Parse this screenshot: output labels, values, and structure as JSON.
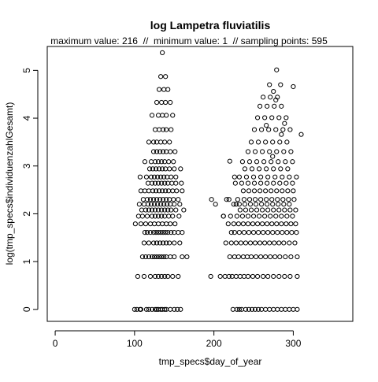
{
  "chart_data": {
    "type": "scatter",
    "title": "log Lampetra fluviatilis",
    "subtitle": "maximum value: 216  //  minimum value: 1  // sampling points: 595",
    "xlabel": "tmp_specs$day_of_year",
    "ylabel": "log(tmp_specs$individuenzahlGesamt)",
    "xlim": [
      -10,
      375
    ],
    "ylim": [
      -0.25,
      5.5
    ],
    "x_ticks": [
      0,
      100,
      200,
      300
    ],
    "y_ticks": [
      0,
      1,
      2,
      3,
      4,
      5
    ],
    "grid": false,
    "marker": "open-circle",
    "point_color": "#000000",
    "series": [
      {
        "x": [
          100,
          103,
          107,
          108,
          115,
          118,
          122,
          126,
          128,
          130,
          133,
          135,
          138,
          140,
          145,
          150,
          154,
          158,
          104,
          112,
          120,
          126,
          130,
          134,
          138,
          142,
          148,
          155,
          110,
          114,
          118,
          122,
          125,
          128,
          131,
          134,
          137,
          140,
          145,
          150,
          160,
          166,
          112,
          118,
          124,
          128,
          132,
          136,
          140,
          144,
          150,
          157,
          113,
          116,
          120,
          124,
          127,
          130,
          133,
          136,
          139,
          142,
          146,
          150,
          155,
          101,
          108,
          114,
          120,
          125,
          130,
          135,
          140,
          145,
          151,
          160,
          105,
          110,
          116,
          122,
          126,
          130,
          134,
          138,
          143,
          148,
          156,
          109,
          114,
          118,
          122,
          126,
          130,
          134,
          138,
          142,
          146,
          152,
          162,
          106,
          112,
          117,
          121,
          125,
          129,
          133,
          137,
          141,
          145,
          150,
          157,
          111,
          116,
          120,
          124,
          128,
          132,
          136,
          140,
          144,
          149,
          155,
          108,
          113,
          118,
          123,
          127,
          131,
          135,
          139,
          143,
          148,
          153,
          160,
          117,
          122,
          126,
          130,
          134,
          138,
          142,
          147,
          152,
          159,
          107,
          115,
          121,
          125,
          129,
          133,
          137,
          141,
          146,
          152,
          119,
          123,
          127,
          131,
          135,
          139,
          144,
          150,
          158,
          113,
          121,
          126,
          130,
          134,
          138,
          143,
          149,
          124,
          128,
          132,
          136,
          140,
          145,
          151,
          118,
          124,
          128,
          133,
          138,
          144,
          126,
          131,
          136,
          140,
          146,
          122,
          130,
          135,
          140,
          148,
          128,
          134,
          139,
          145,
          131,
          137,
          142,
          133,
          139,
          135,
          196,
          197,
          202,
          212,
          216,
          220,
          222,
          226,
          228,
          224,
          229,
          232,
          235,
          240,
          244,
          248,
          252,
          256,
          260,
          265,
          270,
          275,
          280,
          285,
          290,
          295,
          300,
          305,
          208,
          214,
          219,
          223,
          228,
          233,
          238,
          243,
          249,
          255,
          262,
          268,
          275,
          282,
          289,
          296,
          305,
          220,
          226,
          231,
          237,
          242,
          247,
          253,
          259,
          265,
          271,
          277,
          283,
          290,
          297,
          305,
          215,
          222,
          228,
          234,
          240,
          246,
          252,
          258,
          264,
          270,
          276,
          282,
          288,
          295,
          302,
          226,
          232,
          238,
          244,
          250,
          256,
          262,
          268,
          274,
          280,
          286,
          292,
          298,
          304,
          218,
          225,
          231,
          237,
          243,
          249,
          255,
          261,
          267,
          273,
          279,
          285,
          291,
          297,
          303,
          212,
          221,
          229,
          236,
          243,
          250,
          257,
          264,
          271,
          278,
          285,
          292,
          299,
          233,
          240,
          247,
          254,
          261,
          268,
          275,
          282,
          289,
          296,
          303,
          225,
          232,
          239,
          246,
          253,
          260,
          267,
          274,
          281,
          288,
          295,
          219,
          230,
          238,
          245,
          252,
          259,
          266,
          273,
          280,
          287,
          294,
          301,
          237,
          244,
          251,
          258,
          265,
          272,
          279,
          286,
          293,
          300,
          227,
          235,
          243,
          251,
          259,
          267,
          275,
          283,
          291,
          299,
          232,
          241,
          250,
          259,
          268,
          277,
          286,
          295,
          304,
          239,
          248,
          257,
          266,
          275,
          284,
          293,
          236,
          245,
          254,
          263,
          272,
          281,
          290,
          299,
          243,
          252,
          261,
          270,
          279,
          288,
          297,
          247,
          256,
          265,
          274,
          283,
          292,
          251,
          260,
          269,
          278,
          287,
          296,
          255,
          264,
          273,
          282,
          291,
          258,
          267,
          276,
          285,
          262,
          271,
          280,
          266,
          275,
          284,
          270,
          279,
          274,
          278,
          285,
          289,
          300,
          310
        ],
        "y": [
          0,
          0,
          0,
          0,
          0,
          0,
          0,
          0,
          0,
          0,
          0,
          0,
          0,
          0,
          0,
          0,
          0,
          0,
          0.69,
          0.69,
          0.69,
          0.69,
          0.69,
          0.69,
          0.69,
          0.69,
          0.69,
          0.69,
          1.1,
          1.1,
          1.1,
          1.1,
          1.1,
          1.1,
          1.1,
          1.1,
          1.1,
          1.1,
          1.1,
          1.1,
          1.1,
          1.1,
          1.39,
          1.39,
          1.39,
          1.39,
          1.39,
          1.39,
          1.39,
          1.39,
          1.39,
          1.39,
          1.61,
          1.61,
          1.61,
          1.61,
          1.61,
          1.61,
          1.61,
          1.61,
          1.61,
          1.61,
          1.61,
          1.61,
          1.61,
          1.79,
          1.79,
          1.79,
          1.79,
          1.79,
          1.79,
          1.79,
          1.79,
          1.79,
          1.79,
          1.61,
          1.95,
          1.95,
          1.95,
          1.95,
          1.95,
          1.95,
          1.95,
          1.95,
          1.95,
          1.95,
          1.95,
          2.08,
          2.08,
          2.08,
          2.08,
          2.08,
          2.08,
          2.08,
          2.08,
          2.08,
          2.08,
          2.08,
          2.08,
          2.2,
          2.2,
          2.2,
          2.2,
          2.2,
          2.2,
          2.2,
          2.2,
          2.2,
          2.2,
          2.2,
          2.2,
          2.3,
          2.3,
          2.3,
          2.3,
          2.3,
          2.3,
          2.3,
          2.3,
          2.3,
          2.3,
          2.3,
          2.48,
          2.48,
          2.48,
          2.48,
          2.48,
          2.48,
          2.48,
          2.48,
          2.48,
          2.48,
          2.48,
          2.48,
          2.64,
          2.64,
          2.64,
          2.64,
          2.64,
          2.64,
          2.64,
          2.64,
          2.64,
          2.64,
          2.77,
          2.77,
          2.77,
          2.77,
          2.77,
          2.77,
          2.77,
          2.77,
          2.77,
          2.77,
          2.94,
          2.94,
          2.94,
          2.94,
          2.94,
          2.94,
          2.94,
          2.94,
          2.94,
          3.09,
          3.09,
          3.09,
          3.09,
          3.09,
          3.09,
          3.09,
          3.09,
          3.3,
          3.3,
          3.3,
          3.3,
          3.3,
          3.3,
          3.3,
          3.5,
          3.5,
          3.5,
          3.5,
          3.5,
          3.5,
          3.76,
          3.76,
          3.76,
          3.76,
          3.76,
          4.06,
          4.06,
          4.06,
          4.06,
          4.06,
          4.33,
          4.33,
          4.33,
          4.33,
          4.6,
          4.6,
          4.6,
          4.87,
          4.87,
          5.37,
          0.69,
          2.3,
          2.2,
          1.95,
          2.3,
          3.1,
          1.61,
          2.77,
          2.2,
          0,
          0,
          0,
          0,
          0,
          0,
          0,
          0,
          0,
          0,
          0,
          0,
          0,
          0,
          0,
          0,
          0,
          0,
          0,
          0.69,
          0.69,
          0.69,
          0.69,
          0.69,
          0.69,
          0.69,
          0.69,
          0.69,
          0.69,
          0.69,
          0.69,
          0.69,
          0.69,
          0.69,
          0.69,
          0.69,
          1.1,
          1.1,
          1.1,
          1.1,
          1.1,
          1.1,
          1.1,
          1.1,
          1.1,
          1.1,
          1.1,
          1.1,
          1.1,
          1.1,
          1.1,
          1.39,
          1.39,
          1.39,
          1.39,
          1.39,
          1.39,
          1.39,
          1.39,
          1.39,
          1.39,
          1.39,
          1.39,
          1.39,
          1.39,
          1.39,
          1.61,
          1.61,
          1.61,
          1.61,
          1.61,
          1.61,
          1.61,
          1.61,
          1.61,
          1.61,
          1.61,
          1.61,
          1.61,
          1.61,
          1.79,
          1.79,
          1.79,
          1.79,
          1.79,
          1.79,
          1.79,
          1.79,
          1.79,
          1.79,
          1.79,
          1.79,
          1.79,
          1.79,
          1.79,
          1.95,
          1.95,
          1.95,
          1.95,
          1.95,
          1.95,
          1.95,
          1.95,
          1.95,
          1.95,
          1.95,
          1.95,
          1.95,
          2.08,
          2.08,
          2.08,
          2.08,
          2.08,
          2.08,
          2.08,
          2.08,
          2.08,
          2.08,
          2.08,
          2.2,
          2.2,
          2.2,
          2.2,
          2.2,
          2.2,
          2.2,
          2.2,
          2.2,
          2.2,
          2.2,
          2.3,
          2.3,
          2.3,
          2.3,
          2.3,
          2.3,
          2.3,
          2.3,
          2.3,
          2.3,
          2.3,
          2.3,
          2.48,
          2.48,
          2.48,
          2.48,
          2.48,
          2.48,
          2.48,
          2.48,
          2.48,
          2.48,
          2.64,
          2.64,
          2.64,
          2.64,
          2.64,
          2.64,
          2.64,
          2.64,
          2.64,
          2.64,
          2.77,
          2.77,
          2.77,
          2.77,
          2.77,
          2.77,
          2.77,
          2.77,
          2.77,
          2.94,
          2.94,
          2.94,
          2.94,
          2.94,
          2.94,
          2.94,
          3.09,
          3.09,
          3.09,
          3.09,
          3.09,
          3.09,
          3.09,
          3.09,
          3.3,
          3.3,
          3.3,
          3.3,
          3.3,
          3.3,
          3.3,
          3.5,
          3.5,
          3.5,
          3.5,
          3.5,
          3.5,
          3.76,
          3.76,
          3.76,
          3.76,
          3.76,
          3.76,
          4.01,
          4.01,
          4.01,
          4.01,
          4.01,
          4.25,
          4.25,
          4.25,
          4.25,
          4.44,
          4.44,
          4.44,
          3.85,
          4.56,
          4.7,
          4.7,
          5.01,
          3.2,
          4.38,
          3.66,
          3.89,
          4.66,
          3.66
        ]
      }
    ]
  }
}
